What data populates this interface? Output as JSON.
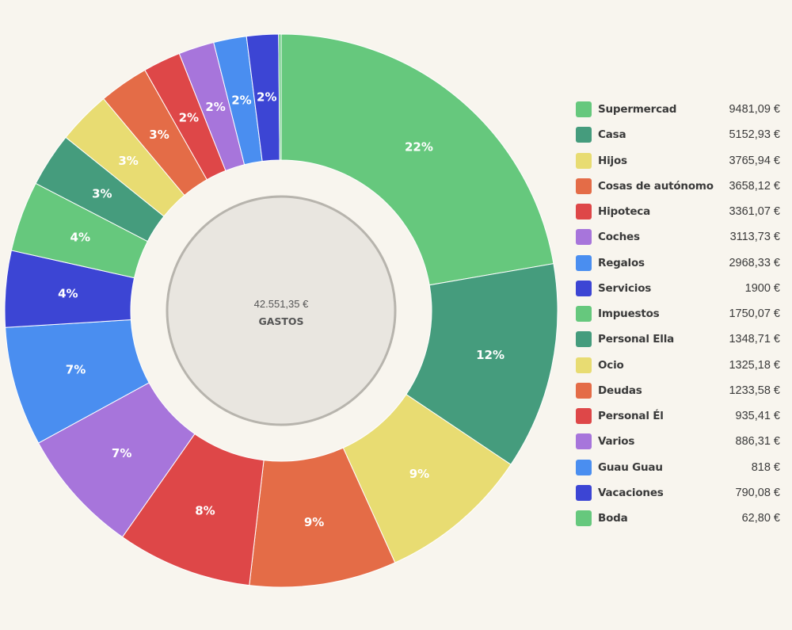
{
  "center": {
    "total": "42.551,35 €",
    "label": "GASTOS"
  },
  "chart_data": {
    "type": "pie",
    "variant": "donut",
    "legend_placement": "right",
    "categories": [
      "Supermercad",
      "Casa",
      "Hijos",
      "Cosas de autónomo",
      "Hipoteca",
      "Coches",
      "Regalos",
      "Servicios",
      "Impuestos",
      "Personal Ella",
      "Ocio",
      "Deudas",
      "Personal Él",
      "Varios",
      "Guau Guau",
      "Vacaciones",
      "Boda"
    ],
    "values": [
      9481.09,
      5152.93,
      3765.94,
      3658.12,
      3361.07,
      3113.73,
      2968.33,
      1900,
      1750.07,
      1348.71,
      1325.18,
      1233.58,
      935.41,
      886.31,
      818,
      790.08,
      62.8
    ],
    "value_labels": [
      "9481,09 €",
      "5152,93 €",
      "3765,94 €",
      "3658,12 €",
      "3361,07 €",
      "3113,73 €",
      "2968,33 €",
      "1900 €",
      "1750,07 €",
      "1348,71 €",
      "1325,18 €",
      "1233,58 €",
      "935,41 €",
      "886,31 €",
      "818 €",
      "790,08 €",
      "62,80 €"
    ],
    "percent_labels": [
      "22%",
      "12%",
      "9%",
      "9%",
      "8%",
      "7%",
      "7%",
      "4%",
      "4%",
      "3%",
      "3%",
      "3%",
      "2%",
      "2%",
      "2%",
      "2%",
      ""
    ],
    "colors": [
      "#66c87d",
      "#459c7d",
      "#e8dc72",
      "#e46c47",
      "#de4748",
      "#a775db",
      "#4a8ef0",
      "#3c45d4",
      "#66c87d",
      "#459c7d",
      "#e8dc72",
      "#e46c47",
      "#de4748",
      "#a775db",
      "#4a8ef0",
      "#3c45d4",
      "#66c87d"
    ]
  }
}
